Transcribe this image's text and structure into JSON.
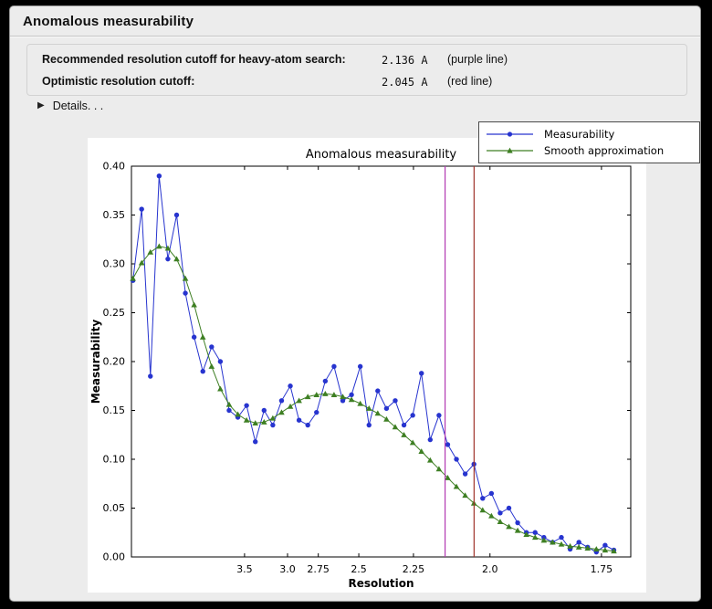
{
  "window": {
    "title": "Anomalous measurability"
  },
  "cutoffs": {
    "rows": [
      {
        "label": "Recommended resolution cutoff for heavy-atom search:",
        "value": "2.136 A",
        "note": "(purple line)"
      },
      {
        "label": "Optimistic resolution cutoff:",
        "value": "2.045 A",
        "note": "(red line)"
      }
    ]
  },
  "details": {
    "label": "Details. . .",
    "expanded": false
  },
  "chart_data": {
    "type": "line",
    "title": "Anomalous measurability",
    "xlabel": "Resolution",
    "ylabel": "Measurability",
    "x_axis_note": "x plotted as 1/d^2, resolution in Angstrom decreasing left to right",
    "xlim_s": [
      0.004,
      0.3466
    ],
    "ylim": [
      0.0,
      0.4
    ],
    "grid": false,
    "legend_position": "upper right",
    "x_ticks": {
      "s": [
        0.0816,
        0.1111,
        0.1322,
        0.16,
        0.1975,
        0.25,
        0.3265
      ],
      "labels": [
        "3.5",
        "3.0",
        "2.75",
        "2.5",
        "2.25",
        "2.0",
        "1.75"
      ]
    },
    "y_ticks": {
      "values": [
        0.0,
        0.05,
        0.1,
        0.15,
        0.2,
        0.25,
        0.3,
        0.35,
        0.4
      ],
      "labels": [
        "0.00",
        "0.05",
        "0.10",
        "0.15",
        "0.20",
        "0.25",
        "0.30",
        "0.35",
        "0.40"
      ]
    },
    "x": [
      0.005,
      0.011,
      0.017,
      0.023,
      0.029,
      0.035,
      0.041,
      0.047,
      0.053,
      0.059,
      0.065,
      0.071,
      0.077,
      0.083,
      0.089,
      0.095,
      0.101,
      0.107,
      0.113,
      0.119,
      0.125,
      0.131,
      0.137,
      0.143,
      0.149,
      0.155,
      0.161,
      0.167,
      0.173,
      0.179,
      0.185,
      0.191,
      0.197,
      0.203,
      0.209,
      0.215,
      0.221,
      0.227,
      0.233,
      0.239,
      0.245,
      0.251,
      0.257,
      0.263,
      0.269,
      0.275,
      0.281,
      0.287,
      0.293,
      0.299,
      0.305,
      0.311,
      0.317,
      0.323,
      0.329,
      0.335
    ],
    "series": [
      {
        "name": "Measurability",
        "color": "#2734cf",
        "marker": "circle",
        "values": [
          0.283,
          0.356,
          0.185,
          0.39,
          0.305,
          0.35,
          0.27,
          0.225,
          0.19,
          0.215,
          0.2,
          0.15,
          0.143,
          0.155,
          0.118,
          0.15,
          0.135,
          0.16,
          0.175,
          0.14,
          0.135,
          0.148,
          0.18,
          0.195,
          0.16,
          0.166,
          0.195,
          0.135,
          0.17,
          0.152,
          0.16,
          0.135,
          0.145,
          0.188,
          0.12,
          0.145,
          0.115,
          0.1,
          0.085,
          0.095,
          0.06,
          0.065,
          0.045,
          0.05,
          0.035,
          0.025,
          0.025,
          0.02,
          0.015,
          0.02,
          0.008,
          0.015,
          0.01,
          0.005,
          0.012,
          0.007
        ]
      },
      {
        "name": "Smooth approximation",
        "color": "#3e7f23",
        "marker": "triangle",
        "values": [
          0.285,
          0.301,
          0.312,
          0.318,
          0.316,
          0.305,
          0.285,
          0.258,
          0.225,
          0.195,
          0.172,
          0.156,
          0.146,
          0.14,
          0.137,
          0.138,
          0.142,
          0.148,
          0.154,
          0.16,
          0.164,
          0.166,
          0.167,
          0.166,
          0.164,
          0.161,
          0.157,
          0.152,
          0.147,
          0.141,
          0.133,
          0.125,
          0.117,
          0.108,
          0.099,
          0.09,
          0.081,
          0.072,
          0.063,
          0.055,
          0.048,
          0.042,
          0.036,
          0.031,
          0.027,
          0.023,
          0.02,
          0.017,
          0.015,
          0.013,
          0.011,
          0.01,
          0.009,
          0.008,
          0.007,
          0.006
        ]
      }
    ],
    "vlines": [
      {
        "name": "purple line",
        "resolution": "2.136 A",
        "at_s": 0.2192,
        "color": "#b339b3"
      },
      {
        "name": "red line",
        "resolution": "2.045 A",
        "at_s": 0.2391,
        "color": "#a0342c"
      }
    ]
  }
}
